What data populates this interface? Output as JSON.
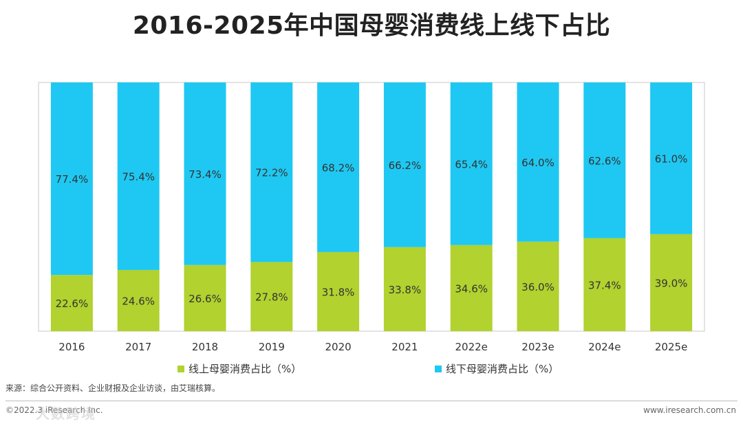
{
  "chart_data": {
    "type": "bar",
    "stacked": true,
    "title": "2016-2025年中国母婴消费线上线下占比",
    "categories": [
      "2016",
      "2017",
      "2018",
      "2019",
      "2020",
      "2021",
      "2022e",
      "2023e",
      "2024e",
      "2025e"
    ],
    "series": [
      {
        "name": "线上母婴消费占比（%）",
        "color": "#b1d22f",
        "values": [
          22.6,
          24.6,
          26.6,
          27.8,
          31.8,
          33.8,
          34.6,
          36.0,
          37.4,
          39.0
        ],
        "labels": [
          "22.6%",
          "24.6%",
          "26.6%",
          "27.8%",
          "31.8%",
          "33.8%",
          "34.6%",
          "36.0%",
          "37.4%",
          "39.0%"
        ]
      },
      {
        "name": "线下母婴消费占比（%）",
        "color": "#1ec8f2",
        "values": [
          77.4,
          75.4,
          73.4,
          72.2,
          68.2,
          66.2,
          65.4,
          64.0,
          62.6,
          61.0
        ],
        "labels": [
          "77.4%",
          "75.4%",
          "73.4%",
          "72.2%",
          "68.2%",
          "66.2%",
          "65.4%",
          "64.0%",
          "62.6%",
          "61.0%"
        ]
      }
    ],
    "ylim": [
      0,
      100
    ],
    "xlabel": "",
    "ylabel": "",
    "legend": "bottom",
    "grid": false
  },
  "footer": {
    "source": "来源：综合公开资料、企业财报及企业访谈，由艾瑞核算。",
    "copyright": "©2022.3 iResearch Inc.",
    "website": "www.iresearch.com.cn",
    "watermark": "大数跨境"
  }
}
